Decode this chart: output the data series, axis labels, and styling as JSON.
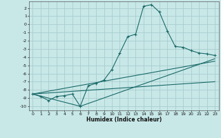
{
  "xlabel": "Humidex (Indice chaleur)",
  "xlim": [
    -0.5,
    23.5
  ],
  "ylim": [
    -10.5,
    2.8
  ],
  "yticks": [
    2,
    1,
    0,
    -1,
    -2,
    -3,
    -4,
    -5,
    -6,
    -7,
    -8,
    -9,
    -10
  ],
  "xticks": [
    0,
    1,
    2,
    3,
    4,
    5,
    6,
    7,
    8,
    9,
    10,
    11,
    12,
    13,
    14,
    15,
    16,
    17,
    18,
    19,
    20,
    21,
    22,
    23
  ],
  "bg_color": "#c8e8e8",
  "grid_color": "#a8cccc",
  "line_color": "#1a6868",
  "line1_x": [
    0,
    1,
    2,
    3,
    4,
    5,
    6,
    7,
    8,
    9,
    10,
    11,
    12,
    13,
    14,
    15,
    16,
    17,
    18,
    19,
    20,
    21,
    22,
    23
  ],
  "line1_y": [
    -8.5,
    -8.8,
    -9.3,
    -8.8,
    -8.7,
    -8.5,
    -10.0,
    -7.5,
    -7.2,
    -6.8,
    -5.5,
    -3.5,
    -1.5,
    -1.2,
    2.2,
    2.4,
    1.5,
    -0.8,
    -2.7,
    -2.8,
    -3.2,
    -3.5,
    -3.6,
    -3.8
  ],
  "line2_x": [
    0,
    6,
    23
  ],
  "line2_y": [
    -8.5,
    -10.0,
    -4.2
  ],
  "line3_x": [
    0,
    23
  ],
  "line3_y": [
    -8.5,
    -4.5
  ],
  "line4_x": [
    0,
    23
  ],
  "line4_y": [
    -8.5,
    -7.0
  ]
}
